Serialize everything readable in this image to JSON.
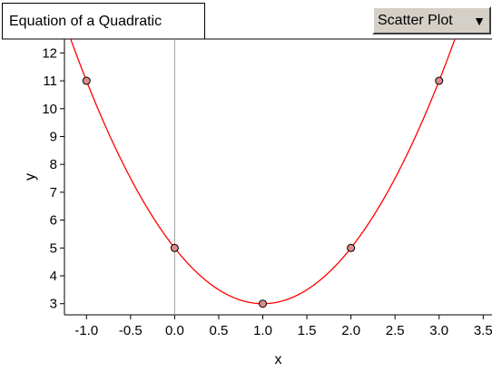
{
  "header": {
    "title": "Equation of a Quadratic",
    "plot_type_label": "Scatter Plot",
    "plot_type_arrow_icon": "triangle-down-icon"
  },
  "chart_data": {
    "type": "scatter",
    "title": "Equation of a Quadratic",
    "xlabel": "x",
    "ylabel": "y",
    "xlim": [
      -1.25,
      3.6
    ],
    "ylim": [
      2.6,
      12.5
    ],
    "x_ticks": [
      -1.0,
      -0.5,
      0.0,
      0.5,
      1.0,
      1.5,
      2.0,
      2.5,
      3.0,
      3.5
    ],
    "x_tick_labels": [
      "-1.0",
      "-0.5",
      "0.0",
      "0.5",
      "1.0",
      "1.5",
      "2.0",
      "2.5",
      "3.0",
      "3.5"
    ],
    "y_ticks": [
      3,
      4,
      5,
      6,
      7,
      8,
      9,
      10,
      11,
      12
    ],
    "y_tick_labels": [
      "3",
      "4",
      "5",
      "6",
      "7",
      "8",
      "9",
      "10",
      "11",
      "12"
    ],
    "grid": false,
    "points": {
      "x": [
        -1,
        0,
        1,
        2,
        3
      ],
      "y": [
        11,
        5,
        3,
        5,
        11
      ]
    },
    "fit_curve": {
      "type": "quadratic",
      "coefficients": [
        2,
        -4,
        5
      ]
    },
    "vertical_line_x": 0,
    "colors": {
      "curve": "#ff0000",
      "point_fill": "#d98a8a",
      "point_stroke": "#000000",
      "zero_line": "#a0a0a0",
      "axes": "#000000"
    }
  }
}
